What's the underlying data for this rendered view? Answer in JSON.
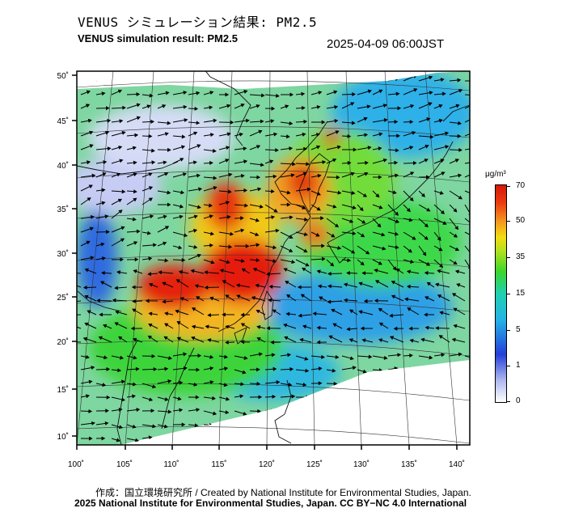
{
  "title_ja": "VENUS シミュレーション結果: PM2.5",
  "title_en": "VENUS simulation result: PM2.5",
  "timestamp": "2025-04-09 06:00JST",
  "map": {
    "lon_ticks": [
      "100˚",
      "105˚",
      "110˚",
      "115˚",
      "120˚",
      "125˚",
      "130˚",
      "135˚",
      "140˚"
    ],
    "lat_ticks": [
      "50˚",
      "45˚",
      "40˚",
      "35˚",
      "30˚",
      "25˚",
      "20˚",
      "15˚",
      "10˚"
    ],
    "lon_range": [
      100,
      142
    ],
    "lat_range": [
      9,
      51
    ]
  },
  "colorbar": {
    "unit": "μg/m³",
    "ticks": [
      "70",
      "50",
      "35",
      "15",
      "5",
      "1",
      "0"
    ]
  },
  "footer": {
    "credit": "作成：国立環境研究所 / Created by National Institute for Environmental Studies, Japan.",
    "copyright": "2025 National Institute for Environmental Studies, Japan. CC BY−NC 4.0 International"
  },
  "colors": {
    "high": "#e51d0c",
    "mid": "#39d43c",
    "low": "#2aa8ee",
    "trace": "#c8ccf2"
  }
}
